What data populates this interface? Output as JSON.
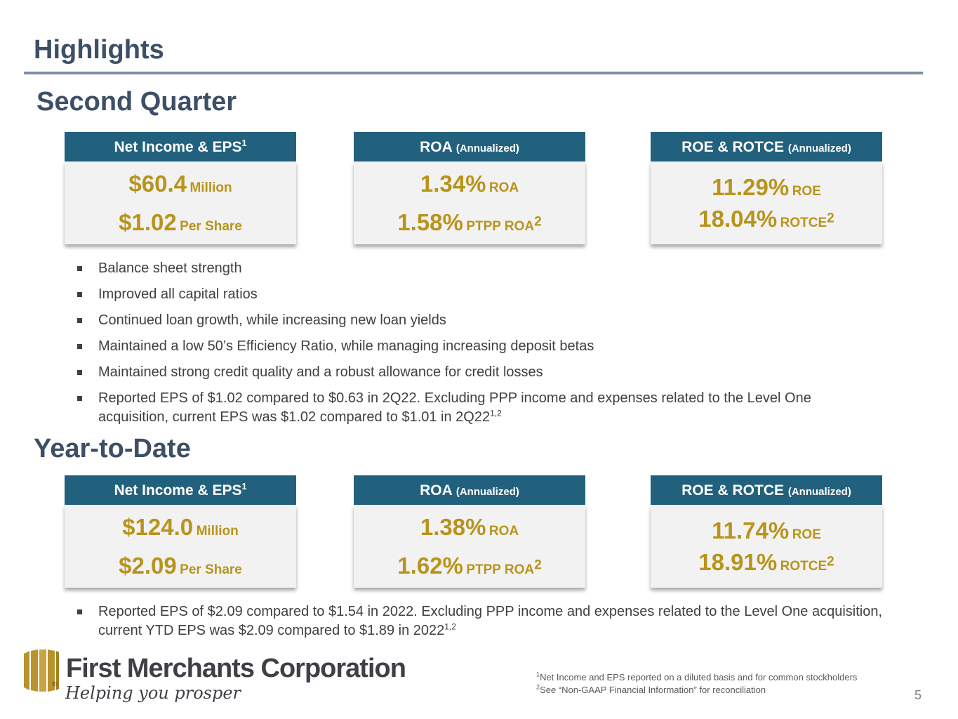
{
  "slide": {
    "title": "Highlights",
    "page_number": "5"
  },
  "second_quarter": {
    "heading": "Second Quarter",
    "cards": [
      {
        "header": "Net Income & EPS",
        "header_sup": "1",
        "header_small": "",
        "line1_value": "$60.4",
        "line1_unit": "Million",
        "line1_sup": "",
        "line2_value": "$1.02",
        "line2_unit": "Per Share",
        "line2_sup": ""
      },
      {
        "header": "ROA",
        "header_sup": "",
        "header_small": "(Annualized)",
        "line1_value": "1.34%",
        "line1_unit": "ROA",
        "line1_sup": "",
        "line2_value": "1.58%",
        "line2_unit": "PTPP ROA",
        "line2_sup": "2"
      },
      {
        "header": "ROE & ROTCE",
        "header_sup": "",
        "header_small": "(Annualized)",
        "line1_value": "11.29%",
        "line1_unit": "ROE",
        "line1_sup": "",
        "line2_value": "18.04%",
        "line2_unit": "ROTCE",
        "line2_sup": "2"
      }
    ],
    "bullets": [
      {
        "text": "Balance sheet strength",
        "sup": ""
      },
      {
        "text": "Improved all capital ratios",
        "sup": ""
      },
      {
        "text": "Continued loan growth, while increasing new loan yields",
        "sup": ""
      },
      {
        "text": "Maintained a low 50’s Efficiency Ratio, while managing increasing deposit betas",
        "sup": ""
      },
      {
        "text": "Maintained strong credit quality and a robust allowance for credit losses",
        "sup": ""
      },
      {
        "text": "Reported EPS of $1.02 compared to $0.63 in 2Q22.  Excluding PPP income and expenses related to the Level One acquisition, current EPS was $1.02 compared to $1.01 in 2Q22",
        "sup": "1,2"
      }
    ]
  },
  "year_to_date": {
    "heading": "Year-to-Date",
    "cards": [
      {
        "header": "Net Income & EPS",
        "header_sup": "1",
        "header_small": "",
        "line1_value": "$124.0",
        "line1_unit": "Million",
        "line1_sup": "",
        "line2_value": "$2.09",
        "line2_unit": "Per Share",
        "line2_sup": ""
      },
      {
        "header": "ROA",
        "header_sup": "",
        "header_small": "(Annualized)",
        "line1_value": "1.38%",
        "line1_unit": "ROA",
        "line1_sup": "",
        "line2_value": "1.62%",
        "line2_unit": "PTPP ROA",
        "line2_sup": "2"
      },
      {
        "header": "ROE & ROTCE",
        "header_sup": "",
        "header_small": "(Annualized)",
        "line1_value": "11.74%",
        "line1_unit": "ROE",
        "line1_sup": "",
        "line2_value": "18.91%",
        "line2_unit": "ROTCE",
        "line2_sup": "2"
      }
    ],
    "bullets": [
      {
        "text": "Reported EPS of $2.09 compared to $1.54 in 2022.  Excluding PPP income and expenses related to the Level One acquisition, current YTD EPS was $2.09 compared to $1.89 in 2022",
        "sup": "1,2"
      }
    ]
  },
  "logo": {
    "wordmark": "First Merchants Corporation",
    "tagline": "Helping you prosper",
    "registered": "®",
    "icon": "columns-building-icon"
  },
  "footnotes": [
    {
      "num": "1",
      "text": "Net Income and EPS reported on a diluted basis and for common stockholders"
    },
    {
      "num": "2",
      "text": "See “Non-GAAP Financial Information” for reconciliation"
    }
  ],
  "colors": {
    "title": "#3d4f66",
    "card_header_bg": "#22617d",
    "metric_gold": "#b8941c",
    "card_body_bg": "#f2f2f2",
    "logo_gold": "#b8922c"
  }
}
